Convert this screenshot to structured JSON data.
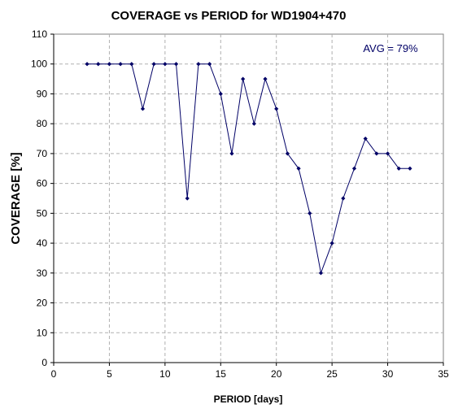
{
  "chart_data": {
    "type": "line",
    "title": "COVERAGE vs PERIOD for WD1904+470",
    "xlabel": "PERIOD [days]",
    "ylabel": "COVERAGE [%]",
    "xlim": [
      0,
      35
    ],
    "ylim": [
      0,
      110
    ],
    "xticks": [
      0,
      5,
      10,
      15,
      20,
      25,
      30,
      35
    ],
    "yticks": [
      0,
      10,
      20,
      30,
      40,
      50,
      60,
      70,
      80,
      90,
      100,
      110
    ],
    "grid": true,
    "annotation": "AVG = 79%",
    "series": [
      {
        "x": [
          3,
          4,
          5,
          6,
          7,
          8,
          9,
          10,
          11,
          12,
          13,
          14,
          15,
          16,
          17,
          18,
          19,
          20,
          21,
          22,
          23,
          24,
          25,
          26,
          27,
          28,
          29,
          30,
          31,
          32
        ],
        "values": [
          100,
          100,
          100,
          100,
          100,
          85,
          100,
          100,
          100,
          55,
          100,
          100,
          90,
          70,
          95,
          80,
          95,
          85,
          70,
          65,
          50,
          30,
          40,
          55,
          65,
          75,
          70,
          70,
          65,
          65
        ],
        "color": "#000066"
      }
    ]
  }
}
